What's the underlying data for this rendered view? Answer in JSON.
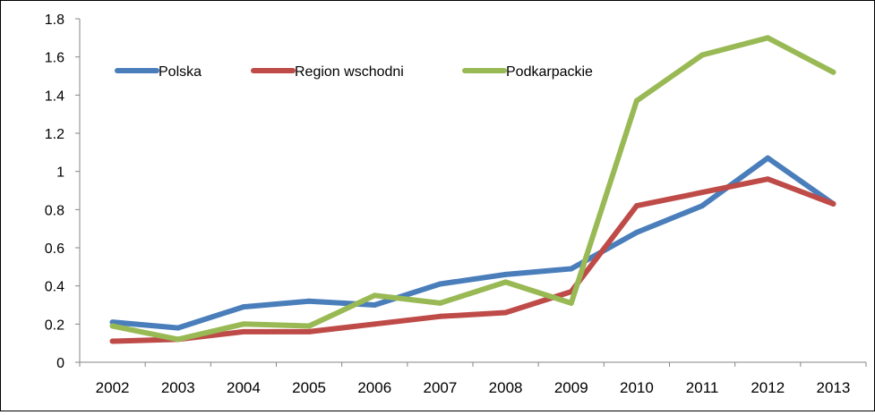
{
  "chart_data": {
    "type": "line",
    "categories": [
      "2002",
      "2003",
      "2004",
      "2005",
      "2006",
      "2007",
      "2008",
      "2009",
      "2010",
      "2011",
      "2012",
      "2013"
    ],
    "series": [
      {
        "name": "Polska",
        "color": "#4a7ebb",
        "values": [
          0.21,
          0.18,
          0.29,
          0.32,
          0.3,
          0.41,
          0.46,
          0.49,
          0.68,
          0.82,
          1.07,
          0.83
        ]
      },
      {
        "name": "Region wschodni",
        "color": "#be4b48",
        "values": [
          0.11,
          0.12,
          0.16,
          0.16,
          0.2,
          0.24,
          0.26,
          0.37,
          0.82,
          0.89,
          0.96,
          0.83
        ]
      },
      {
        "name": "Podkarpackie",
        "color": "#98b954",
        "values": [
          0.19,
          0.12,
          0.2,
          0.19,
          0.35,
          0.31,
          0.42,
          0.31,
          1.37,
          1.61,
          1.7,
          1.52
        ]
      }
    ],
    "yticks": [
      "0",
      "0.2",
      "0.4",
      "0.6",
      "0.8",
      "1",
      "1.2",
      "1.4",
      "1.6",
      "1.8"
    ],
    "ylim": [
      0,
      1.8
    ],
    "legend_position": "top-left inside plot",
    "grid": false
  }
}
